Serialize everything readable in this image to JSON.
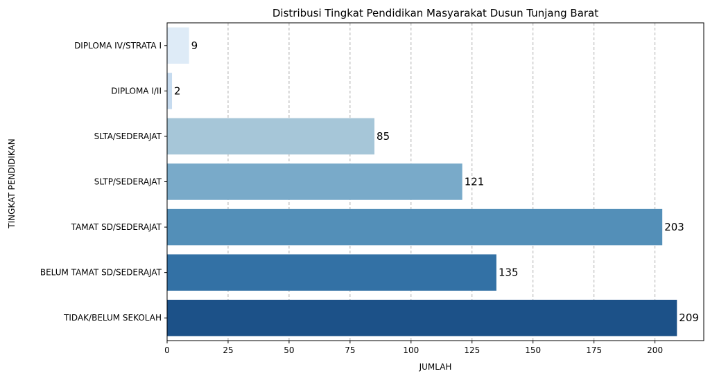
{
  "chart_data": {
    "type": "bar",
    "orientation": "horizontal",
    "title": "Distribusi Tingkat Pendidikan Masyarakat Dusun Tunjang Barat",
    "xlabel": "JUMLAH",
    "ylabel": "TINGKAT PENDIDIKAN",
    "xlim": [
      0,
      220
    ],
    "xticks": [
      0,
      25,
      50,
      75,
      100,
      125,
      150,
      175,
      200
    ],
    "grid": "vertical dashed",
    "categories": [
      "DIPLOMA IV/STRATA I",
      "DIPLOMA I/II",
      "SLTA/SEDERAJAT",
      "SLTP/SEDERAJAT",
      "TAMAT SD/SEDERAJAT",
      "BELUM TAMAT SD/SEDERAJAT",
      "TIDAK/BELUM SEKOLAH"
    ],
    "values": [
      9,
      2,
      85,
      121,
      203,
      135,
      209
    ],
    "colors": [
      "#deebf7",
      "#c6dbef",
      "#a6c6d8",
      "#79aac9",
      "#538fb8",
      "#3371a5",
      "#1c5188"
    ]
  }
}
